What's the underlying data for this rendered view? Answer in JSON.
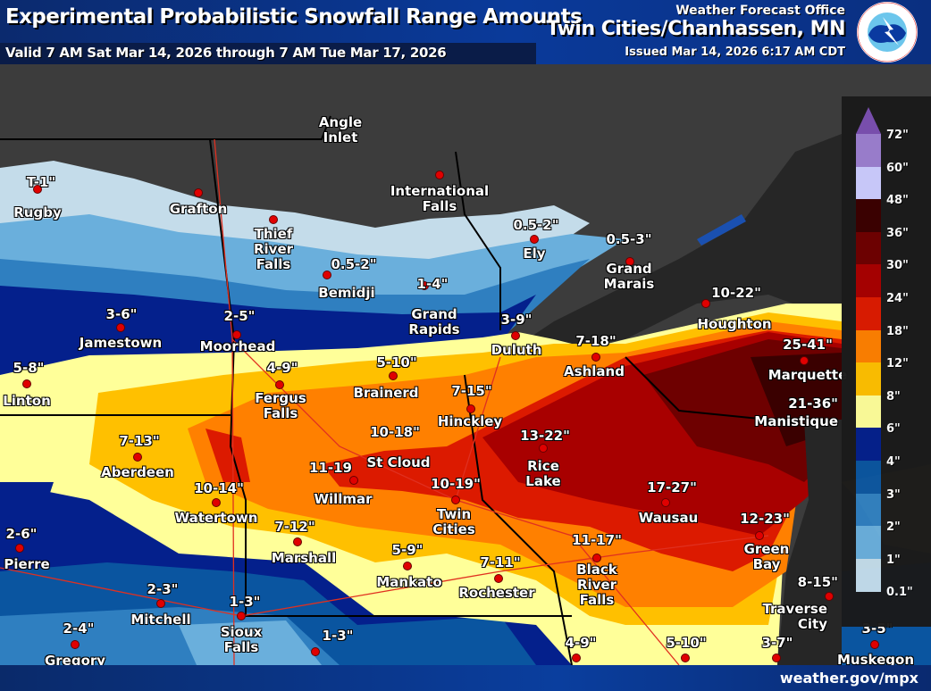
{
  "header": {
    "title": "Experimental Probabilistic Snowfall Range Amounts",
    "valid": "Valid 7 AM Sat Mar 14, 2026 through 7 AM Tue Mar 17, 2026",
    "wfo": "Weather Forecast Office",
    "office": "Twin Cities/Chanhassen, MN",
    "issued": "Issued Mar 14, 2026 6:17 AM CDT",
    "logo_text": "NATIONAL WEATHER SERVICE"
  },
  "footer": {
    "site": "weather.gov/mpx"
  },
  "legend": {
    "labels": [
      "72\"",
      "60\"",
      "48\"",
      "36\"",
      "30\"",
      "24\"",
      "18\"",
      "12\"",
      "8\"",
      "6\"",
      "4\"",
      "3\"",
      "2\"",
      "1\"",
      "0.1\""
    ],
    "colors": [
      "#9b7fcf",
      "#ccccff",
      "#3a0000",
      "#6e0000",
      "#a80000",
      "#dc1a00",
      "#ff8000",
      "#ffc000",
      "#ffff99",
      "#04208c",
      "#0a55a0",
      "#2f7fc0",
      "#6aafdc",
      "#c4dcea"
    ],
    "arrow_color": "#7a4fb0"
  },
  "cities": [
    {
      "name": "Angle\nInlet",
      "amount": ""
    },
    {
      "name": "Rugby",
      "amount": "T-1\""
    },
    {
      "name": "Grafton",
      "amount": ""
    },
    {
      "name": "Thief\nRiver\nFalls",
      "amount": ""
    },
    {
      "name": "International\nFalls",
      "amount": ""
    },
    {
      "name": "Ely",
      "amount": "0.5-2\""
    },
    {
      "name": "Grand\nMarais",
      "amount": "0.5-3\""
    },
    {
      "name": "Bemidji",
      "amount": "0.5-2\""
    },
    {
      "name": "Grand\nRapids",
      "amount": "1-4\""
    },
    {
      "name": "Jamestown",
      "amount": "3-6\""
    },
    {
      "name": "Moorhead",
      "amount": "2-5\""
    },
    {
      "name": "Duluth",
      "amount": "3-9\""
    },
    {
      "name": "Ashland",
      "amount": "7-18\""
    },
    {
      "name": "Houghton",
      "amount": "10-22\""
    },
    {
      "name": "Marquette",
      "amount": "25-41\""
    },
    {
      "name": "Linton",
      "amount": "5-8\""
    },
    {
      "name": "Fergus\nFalls",
      "amount": "4-9\""
    },
    {
      "name": "Brainerd",
      "amount": "5-10\""
    },
    {
      "name": "Hinckley",
      "amount": "7-15\""
    },
    {
      "name": "Rice\nLake",
      "amount": "13-22\""
    },
    {
      "name": "Manistique",
      "amount": "21-36\""
    },
    {
      "name": "Aberdeen",
      "amount": "7-13\""
    },
    {
      "name": "St Cloud",
      "amount": "10-18\""
    },
    {
      "name": "Willmar",
      "amount": "11-19"
    },
    {
      "name": "Watertown",
      "amount": "10-14\""
    },
    {
      "name": "Twin\nCities",
      "amount": "10-19\""
    },
    {
      "name": "Wausau",
      "amount": "17-27\""
    },
    {
      "name": "Green\nBay",
      "amount": "12-23\""
    },
    {
      "name": "Traverse\nCity",
      "amount": "8-15\""
    },
    {
      "name": "Pierre",
      "amount": "2-6\""
    },
    {
      "name": "Marshall",
      "amount": "7-12\""
    },
    {
      "name": "Mankato",
      "amount": "5-9\""
    },
    {
      "name": "Rochester",
      "amount": "7-11\""
    },
    {
      "name": "Black\nRiver\nFalls",
      "amount": "11-17\""
    },
    {
      "name": "Mitchell",
      "amount": "2-3\""
    },
    {
      "name": "Sioux\nFalls",
      "amount": "1-3\""
    },
    {
      "name": "Gregory",
      "amount": "2-4\""
    },
    {
      "name": "",
      "amount": "1-3\""
    },
    {
      "name": "",
      "amount": "4-9\""
    },
    {
      "name": "",
      "amount": "5-10\""
    },
    {
      "name": "",
      "amount": "3-7\""
    },
    {
      "name": "Muskegon",
      "amount": "3-5\""
    }
  ]
}
